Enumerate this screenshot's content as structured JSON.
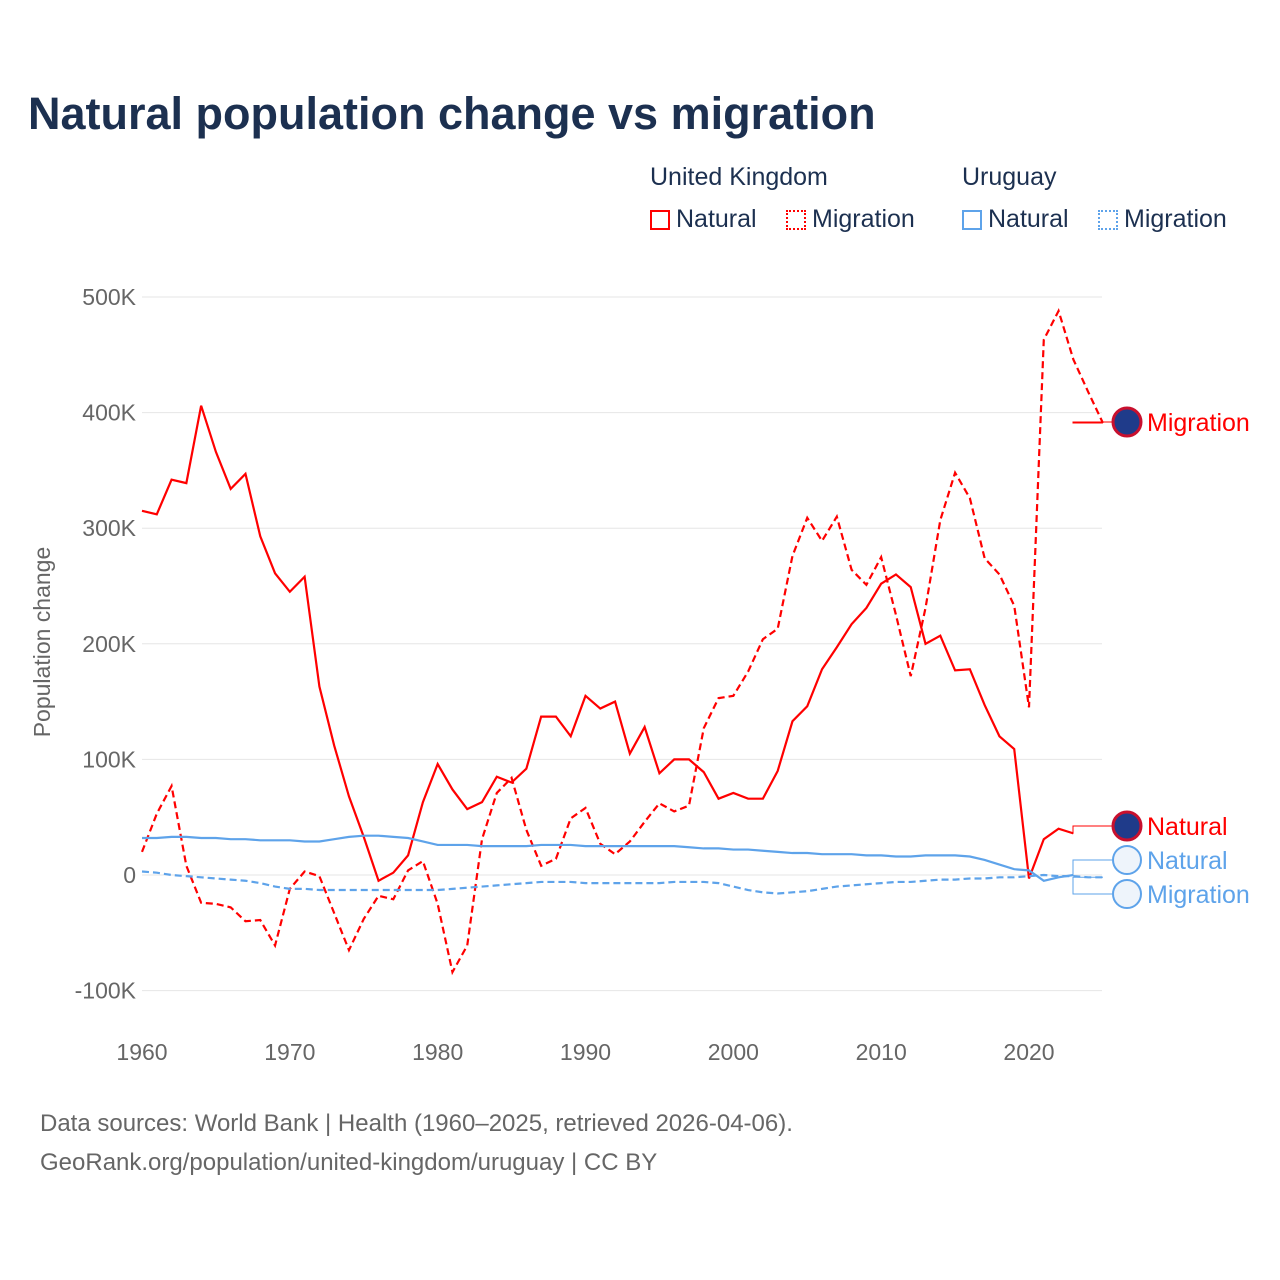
{
  "title": "Natural population change vs migration",
  "legend": {
    "groups": [
      {
        "name": "United Kingdom",
        "items": [
          "Natural",
          "Migration"
        ]
      },
      {
        "name": "Uruguay",
        "items": [
          "Natural",
          "Migration"
        ]
      }
    ]
  },
  "source_line1": "Data sources: World Bank | Health (1960–2025, retrieved 2026-04-06).",
  "source_line2": "GeoRank.org/population/united-kingdom/uruguay | CC BY",
  "chart_data": {
    "type": "line",
    "title": "Natural population change vs migration",
    "xlabel": "",
    "ylabel": "Population change",
    "xlim": [
      1960,
      2025
    ],
    "ylim": [
      -100000,
      500000
    ],
    "xticks": [
      1960,
      1970,
      1980,
      1990,
      2000,
      2010,
      2020
    ],
    "yticks": [
      -100000,
      0,
      100000,
      200000,
      300000,
      400000,
      500000
    ],
    "ytick_labels": [
      "-100K",
      "0",
      "100K",
      "200K",
      "300K",
      "400K",
      "500K"
    ],
    "grid": true,
    "x_start": 1960,
    "series": [
      {
        "name": "United Kingdom Natural",
        "label": "Natural",
        "color": "#ff0000",
        "dash": false,
        "values": [
          315,
          312,
          342,
          339,
          406,
          366,
          334,
          347,
          293,
          261,
          245,
          258,
          163,
          112,
          68,
          33,
          -5,
          2,
          17,
          63,
          96,
          74,
          57,
          63,
          85,
          80,
          92,
          137,
          137,
          120,
          155,
          144,
          150,
          105,
          128,
          88,
          100,
          100,
          89,
          66,
          71,
          66,
          66,
          90,
          133,
          146,
          178,
          197,
          217,
          231,
          252,
          260,
          249,
          200,
          207,
          177,
          178,
          147,
          120,
          109,
          -3,
          31,
          40,
          36
        ]
      },
      {
        "name": "United Kingdom Migration",
        "label": "Migration",
        "color": "#ff0000",
        "dash": true,
        "values": [
          20,
          53,
          77,
          8,
          -24,
          -25,
          -28,
          -40,
          -39,
          -61,
          -12,
          3,
          -1,
          -33,
          -65,
          -38,
          -18,
          -21,
          4,
          12,
          -25,
          -84,
          -61,
          31,
          71,
          84,
          39,
          8,
          14,
          49,
          58,
          27,
          18,
          29,
          46,
          62,
          55,
          60,
          127,
          153,
          155,
          176,
          204,
          213,
          276,
          309,
          289,
          310,
          264,
          251,
          275,
          225,
          172,
          231,
          307,
          348,
          326,
          274,
          260,
          233,
          145,
          463,
          488,
          446,
          418,
          391
        ]
      },
      {
        "name": "Uruguay Natural",
        "label": "Natural",
        "color": "#5ea3ea",
        "dash": false,
        "values": [
          32,
          32,
          33,
          33,
          32,
          32,
          31,
          31,
          30,
          30,
          30,
          29,
          29,
          31,
          33,
          34,
          34,
          33,
          32,
          29,
          26,
          26,
          26,
          25,
          25,
          25,
          25,
          26,
          26,
          26,
          25,
          25,
          25,
          25,
          25,
          25,
          25,
          24,
          23,
          23,
          22,
          22,
          21,
          20,
          19,
          19,
          18,
          18,
          18,
          17,
          17,
          16,
          16,
          17,
          17,
          17,
          16,
          13,
          9,
          5,
          4,
          -5,
          -2,
          0
        ]
      },
      {
        "name": "Uruguay Migration",
        "label": "Migration",
        "color": "#5ea3ea",
        "dash": true,
        "values": [
          3,
          2,
          0,
          -1,
          -2,
          -3,
          -4,
          -5,
          -7,
          -10,
          -12,
          -12,
          -13,
          -13,
          -13,
          -13,
          -13,
          -13,
          -13,
          -13,
          -13,
          -12,
          -11,
          -10,
          -9,
          -8,
          -7,
          -6,
          -6,
          -6,
          -7,
          -7,
          -7,
          -7,
          -7,
          -7,
          -6,
          -6,
          -6,
          -7,
          -10,
          -13,
          -15,
          -16,
          -15,
          -14,
          -12,
          -10,
          -9,
          -8,
          -7,
          -6,
          -6,
          -5,
          -4,
          -4,
          -3,
          -3,
          -2,
          -2,
          -1,
          0,
          -1,
          -1,
          -2,
          -2
        ]
      }
    ],
    "values_unit": "thousands",
    "end_labels": [
      "Migration",
      "Natural",
      "Natural",
      "Migration"
    ]
  }
}
